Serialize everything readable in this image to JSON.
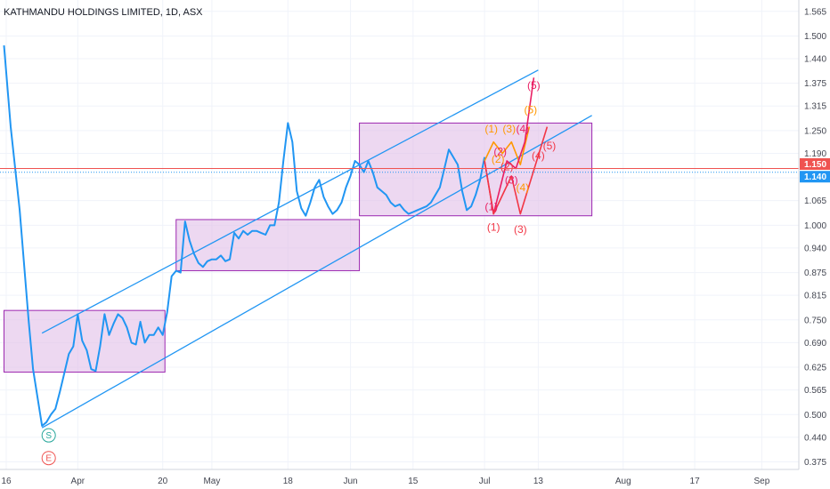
{
  "chart_data": {
    "type": "line",
    "title": "KATHMANDU HOLDINGS LIMITED, 1D, ASX",
    "xlabel": "",
    "ylabel": "",
    "ylim": [
      0.355,
      1.595
    ],
    "x_ticks": [
      {
        "label": "16",
        "day": 0
      },
      {
        "label": "Apr",
        "day": 16
      },
      {
        "label": "20",
        "day": 35
      },
      {
        "label": "May",
        "day": 46
      },
      {
        "label": "18",
        "day": 63
      },
      {
        "label": "Jun",
        "day": 77
      },
      {
        "label": "15",
        "day": 91
      },
      {
        "label": "Jul",
        "day": 107
      },
      {
        "label": "13",
        "day": 119
      },
      {
        "label": "Aug",
        "day": 138
      },
      {
        "label": "17",
        "day": 154
      },
      {
        "label": "Sep",
        "day": 169
      }
    ],
    "y_ticks": [
      0.375,
      0.44,
      0.5,
      0.565,
      0.625,
      0.69,
      0.75,
      0.815,
      0.875,
      0.94,
      1.0,
      1.065,
      1.125,
      1.19,
      1.25,
      1.315,
      1.375,
      1.44,
      1.5,
      1.565
    ],
    "y_tick_labels": [
      "0.375",
      "0.440",
      "0.500",
      "0.565",
      "0.625",
      "0.690",
      "0.750",
      "0.815",
      "0.875",
      "0.940",
      "1.000",
      "1.065",
      "1.125",
      "1.190",
      "1.250",
      "1.315",
      "1.375",
      "1.440",
      "1.500",
      "1.565"
    ],
    "price_labels": [
      {
        "label": "1.150",
        "value": 1.15,
        "color": "#ef5350"
      },
      {
        "label": "1.140",
        "value": 1.14,
        "color": "#2196f3"
      }
    ],
    "series": [
      {
        "color": "#2196f3",
        "x": [
          -0.5,
          1,
          3,
          5,
          6,
          8,
          9,
          10,
          11,
          12,
          13,
          14,
          15,
          16,
          17,
          18,
          19,
          20,
          21,
          22,
          23,
          24,
          25,
          26,
          27,
          28,
          29,
          30,
          31,
          32,
          33,
          34,
          35,
          36,
          37,
          38,
          39,
          40,
          41,
          42,
          43,
          44,
          45,
          46,
          47,
          48,
          49,
          50,
          51,
          52,
          53,
          54,
          55,
          56,
          57,
          58,
          59,
          60,
          61,
          62,
          63,
          64,
          65,
          66,
          67,
          68,
          69,
          70,
          71,
          72,
          73,
          74,
          75,
          76,
          77,
          78,
          79,
          80,
          81,
          82,
          83,
          84,
          85,
          86,
          87,
          88,
          89,
          90,
          91,
          92,
          93,
          94,
          95,
          96,
          97,
          98,
          99,
          100,
          101,
          102,
          103,
          104,
          105,
          106,
          107
        ],
        "y": [
          1.475,
          1.26,
          1.04,
          0.75,
          0.62,
          0.47,
          0.48,
          0.5,
          0.515,
          0.56,
          0.61,
          0.66,
          0.68,
          0.765,
          0.695,
          0.67,
          0.62,
          0.615,
          0.68,
          0.765,
          0.71,
          0.74,
          0.765,
          0.755,
          0.73,
          0.69,
          0.685,
          0.745,
          0.69,
          0.71,
          0.71,
          0.73,
          0.71,
          0.77,
          0.865,
          0.88,
          0.875,
          1.01,
          0.96,
          0.925,
          0.9,
          0.89,
          0.905,
          0.91,
          0.91,
          0.92,
          0.905,
          0.91,
          0.98,
          0.965,
          0.985,
          0.975,
          0.985,
          0.985,
          0.98,
          0.975,
          1.0,
          1.0,
          1.06,
          1.17,
          1.27,
          1.22,
          1.09,
          1.045,
          1.025,
          1.06,
          1.1,
          1.12,
          1.075,
          1.05,
          1.03,
          1.04,
          1.06,
          1.1,
          1.13,
          1.17,
          1.16,
          1.14,
          1.17,
          1.14,
          1.1,
          1.09,
          1.08,
          1.06,
          1.05,
          1.055,
          1.04,
          1.03,
          1.035,
          1.04,
          1.045,
          1.05,
          1.06,
          1.08,
          1.1,
          1.15,
          1.2,
          1.18,
          1.16,
          1.09,
          1.04,
          1.05,
          1.08,
          1.12,
          1.18
        ]
      }
    ],
    "channel": {
      "color": "#2196f3",
      "upper": [
        [
          8,
          0.715
        ],
        [
          119,
          1.41
        ]
      ],
      "lower": [
        [
          8,
          0.465
        ],
        [
          131,
          1.29
        ]
      ]
    },
    "boxes": [
      {
        "x0": -0.5,
        "x1": 35.5,
        "y0": 0.612,
        "y1": 0.775
      },
      {
        "x0": 38,
        "x1": 79,
        "y0": 0.88,
        "y1": 1.015
      },
      {
        "x0": 79,
        "x1": 131,
        "y0": 1.025,
        "y1": 1.27
      }
    ],
    "box_style": {
      "fill": "#e1bee7",
      "stroke": "#9c27b0"
    },
    "wave_paths": [
      {
        "color": "#ff9800",
        "points": [
          [
            107,
            1.17
          ],
          [
            109,
            1.22
          ],
          [
            111,
            1.19
          ],
          [
            113,
            1.22
          ],
          [
            115,
            1.16
          ],
          [
            117,
            1.26
          ]
        ]
      },
      {
        "color": "#e91e63",
        "points": [
          [
            107,
            1.17
          ],
          [
            109,
            1.03
          ],
          [
            112,
            1.17
          ],
          [
            114,
            1.15
          ],
          [
            116,
            1.22
          ],
          [
            118,
            1.39
          ]
        ]
      },
      {
        "color": "#f23645",
        "points": [
          [
            107,
            1.17
          ],
          [
            109,
            1.03
          ],
          [
            113,
            1.13
          ],
          [
            115,
            1.03
          ],
          [
            121,
            1.26
          ]
        ]
      }
    ],
    "wave_labels": [
      {
        "text": "(1)",
        "x": 108.5,
        "y": 1.245,
        "color": "#ff9800"
      },
      {
        "text": "(3)",
        "x": 112.5,
        "y": 1.245,
        "color": "#ff9800"
      },
      {
        "text": "(2)",
        "x": 110,
        "y": 1.165,
        "color": "#ff9800"
      },
      {
        "text": "(4)",
        "x": 115.5,
        "y": 1.09,
        "color": "#ff9800"
      },
      {
        "text": "(5)",
        "x": 117.3,
        "y": 1.295,
        "color": "#ff9800"
      },
      {
        "text": "(1)",
        "x": 108.5,
        "y": 1.04,
        "color": "#e91e63"
      },
      {
        "text": "(2)",
        "x": 110.5,
        "y": 1.185,
        "color": "#e91e63"
      },
      {
        "text": "(3)",
        "x": 113,
        "y": 1.11,
        "color": "#e91e63"
      },
      {
        "text": "(4)",
        "x": 115.5,
        "y": 1.245,
        "color": "#e91e63"
      },
      {
        "text": "(5)",
        "x": 118,
        "y": 1.36,
        "color": "#e91e63"
      },
      {
        "text": "(1)",
        "x": 109,
        "y": 0.985,
        "color": "#f23645"
      },
      {
        "text": "(2)",
        "x": 112,
        "y": 1.145,
        "color": "#f23645"
      },
      {
        "text": "(3)",
        "x": 115,
        "y": 0.98,
        "color": "#f23645"
      },
      {
        "text": "(4)",
        "x": 119,
        "y": 1.175,
        "color": "#f23645"
      },
      {
        "text": "(5)",
        "x": 121.5,
        "y": 1.2,
        "color": "#f23645"
      }
    ],
    "event_markers": [
      {
        "text": "S",
        "x": 9.5,
        "y": 0.445,
        "color": "#26a69a"
      },
      {
        "text": "E",
        "x": 9.5,
        "y": 0.385,
        "color": "#ef5350"
      }
    ],
    "grid": true,
    "legend": "none"
  }
}
